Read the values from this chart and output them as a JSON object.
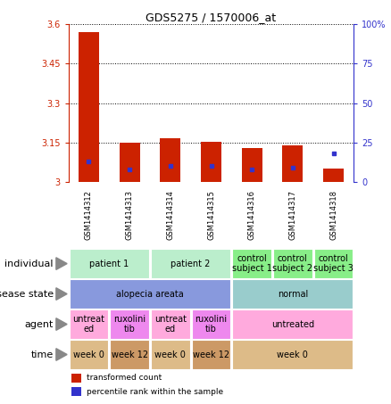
{
  "title": "GDS5275 / 1570006_at",
  "samples": [
    "GSM1414312",
    "GSM1414313",
    "GSM1414314",
    "GSM1414315",
    "GSM1414316",
    "GSM1414317",
    "GSM1414318"
  ],
  "red_values": [
    3.57,
    3.148,
    3.165,
    3.152,
    3.13,
    3.138,
    3.05
  ],
  "blue_values": [
    13.0,
    8.0,
    10.0,
    10.0,
    8.0,
    9.0,
    18.0
  ],
  "ylim_left": [
    3.0,
    3.6
  ],
  "ylim_right": [
    0,
    100
  ],
  "left_ticks": [
    3.0,
    3.15,
    3.3,
    3.45,
    3.6
  ],
  "right_ticks": [
    0,
    25,
    50,
    75,
    100
  ],
  "left_tick_labels": [
    "3",
    "3.15",
    "3.3",
    "3.45",
    "3.6"
  ],
  "right_tick_labels": [
    "0",
    "25",
    "50",
    "75",
    "100%"
  ],
  "bar_color": "#cc2200",
  "dot_color": "#3333cc",
  "individual_row": {
    "label": "individual",
    "cells": [
      {
        "text": "patient 1",
        "colspan": 2,
        "color": "#bbeecc"
      },
      {
        "text": "patient 2",
        "colspan": 2,
        "color": "#bbeecc"
      },
      {
        "text": "control\nsubject 1",
        "colspan": 1,
        "color": "#88ee88"
      },
      {
        "text": "control\nsubject 2",
        "colspan": 1,
        "color": "#88ee88"
      },
      {
        "text": "control\nsubject 3",
        "colspan": 1,
        "color": "#88ee88"
      }
    ]
  },
  "disease_row": {
    "label": "disease state",
    "cells": [
      {
        "text": "alopecia areata",
        "colspan": 4,
        "color": "#8899dd"
      },
      {
        "text": "normal",
        "colspan": 3,
        "color": "#99cccc"
      }
    ]
  },
  "agent_row": {
    "label": "agent",
    "cells": [
      {
        "text": "untreat\ned",
        "colspan": 1,
        "color": "#ffaadd"
      },
      {
        "text": "ruxolini\ntib",
        "colspan": 1,
        "color": "#ee88ee"
      },
      {
        "text": "untreat\ned",
        "colspan": 1,
        "color": "#ffaadd"
      },
      {
        "text": "ruxolini\ntib",
        "colspan": 1,
        "color": "#ee88ee"
      },
      {
        "text": "untreated",
        "colspan": 3,
        "color": "#ffaadd"
      }
    ]
  },
  "time_row": {
    "label": "time",
    "cells": [
      {
        "text": "week 0",
        "colspan": 1,
        "color": "#ddbb88"
      },
      {
        "text": "week 12",
        "colspan": 1,
        "color": "#cc9966"
      },
      {
        "text": "week 0",
        "colspan": 1,
        "color": "#ddbb88"
      },
      {
        "text": "week 12",
        "colspan": 1,
        "color": "#cc9966"
      },
      {
        "text": "week 0",
        "colspan": 3,
        "color": "#ddbb88"
      }
    ]
  },
  "legend_red": "transformed count",
  "legend_blue": "percentile rank within the sample",
  "bg_color": "#ffffff",
  "header_bg": "#bbbbbb",
  "label_fontsize": 8,
  "cell_fontsize": 7,
  "sample_fontsize": 6
}
